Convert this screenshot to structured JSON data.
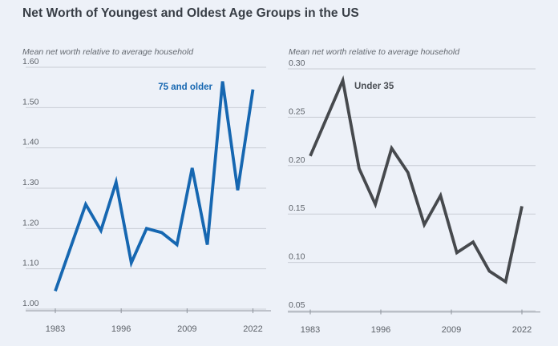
{
  "title": "Net Worth of Youngest and Oldest Age Groups in the US",
  "colors": {
    "background": "#edf1f8",
    "title_text": "#373d45",
    "accent_blue": "#1667b1",
    "accent_dark": "#46494d",
    "grid": "#c9cdd5",
    "axis": "#8e949d"
  },
  "chart_data": [
    {
      "type": "line",
      "name": "75 and older",
      "subtitle": "Mean net worth relative to average household",
      "x": [
        1983,
        1989,
        1992,
        1995,
        1998,
        2001,
        2004,
        2007,
        2010,
        2013,
        2016,
        2019,
        2022
      ],
      "values": [
        1.045,
        1.26,
        1.195,
        1.315,
        1.115,
        1.2,
        1.19,
        1.16,
        1.35,
        1.16,
        1.565,
        1.295,
        1.545
      ],
      "color": "#1667b1",
      "label_color": "#1667b1",
      "ylim": [
        1.0,
        1.6
      ],
      "y_ticks": [
        "1.60",
        "1.50",
        "1.40",
        "1.30",
        "1.20",
        "1.10",
        "1.00"
      ],
      "x_ticks": [
        "1983",
        "1996",
        "2009",
        "2022"
      ],
      "grid": true,
      "legend_position": "annotation-upper-middle"
    },
    {
      "type": "line",
      "name": "Under 35",
      "subtitle": "Mean net worth relative to average household",
      "x": [
        1983,
        1989,
        1992,
        1995,
        1998,
        2001,
        2004,
        2007,
        2010,
        2013,
        2016,
        2019,
        2022
      ],
      "values": [
        0.21,
        0.288,
        0.197,
        0.16,
        0.218,
        0.193,
        0.139,
        0.169,
        0.11,
        0.121,
        0.091,
        0.08,
        0.158
      ],
      "color": "#46494d",
      "label_color": "#4b4f55",
      "ylim": [
        0.05,
        0.3
      ],
      "y_ticks": [
        "0.30",
        "0.25",
        "0.20",
        "0.15",
        "0.10",
        "0.05"
      ],
      "x_ticks": [
        "1983",
        "1996",
        "2009",
        "2022"
      ],
      "grid": true,
      "legend_position": "annotation-right-of-peak"
    }
  ]
}
